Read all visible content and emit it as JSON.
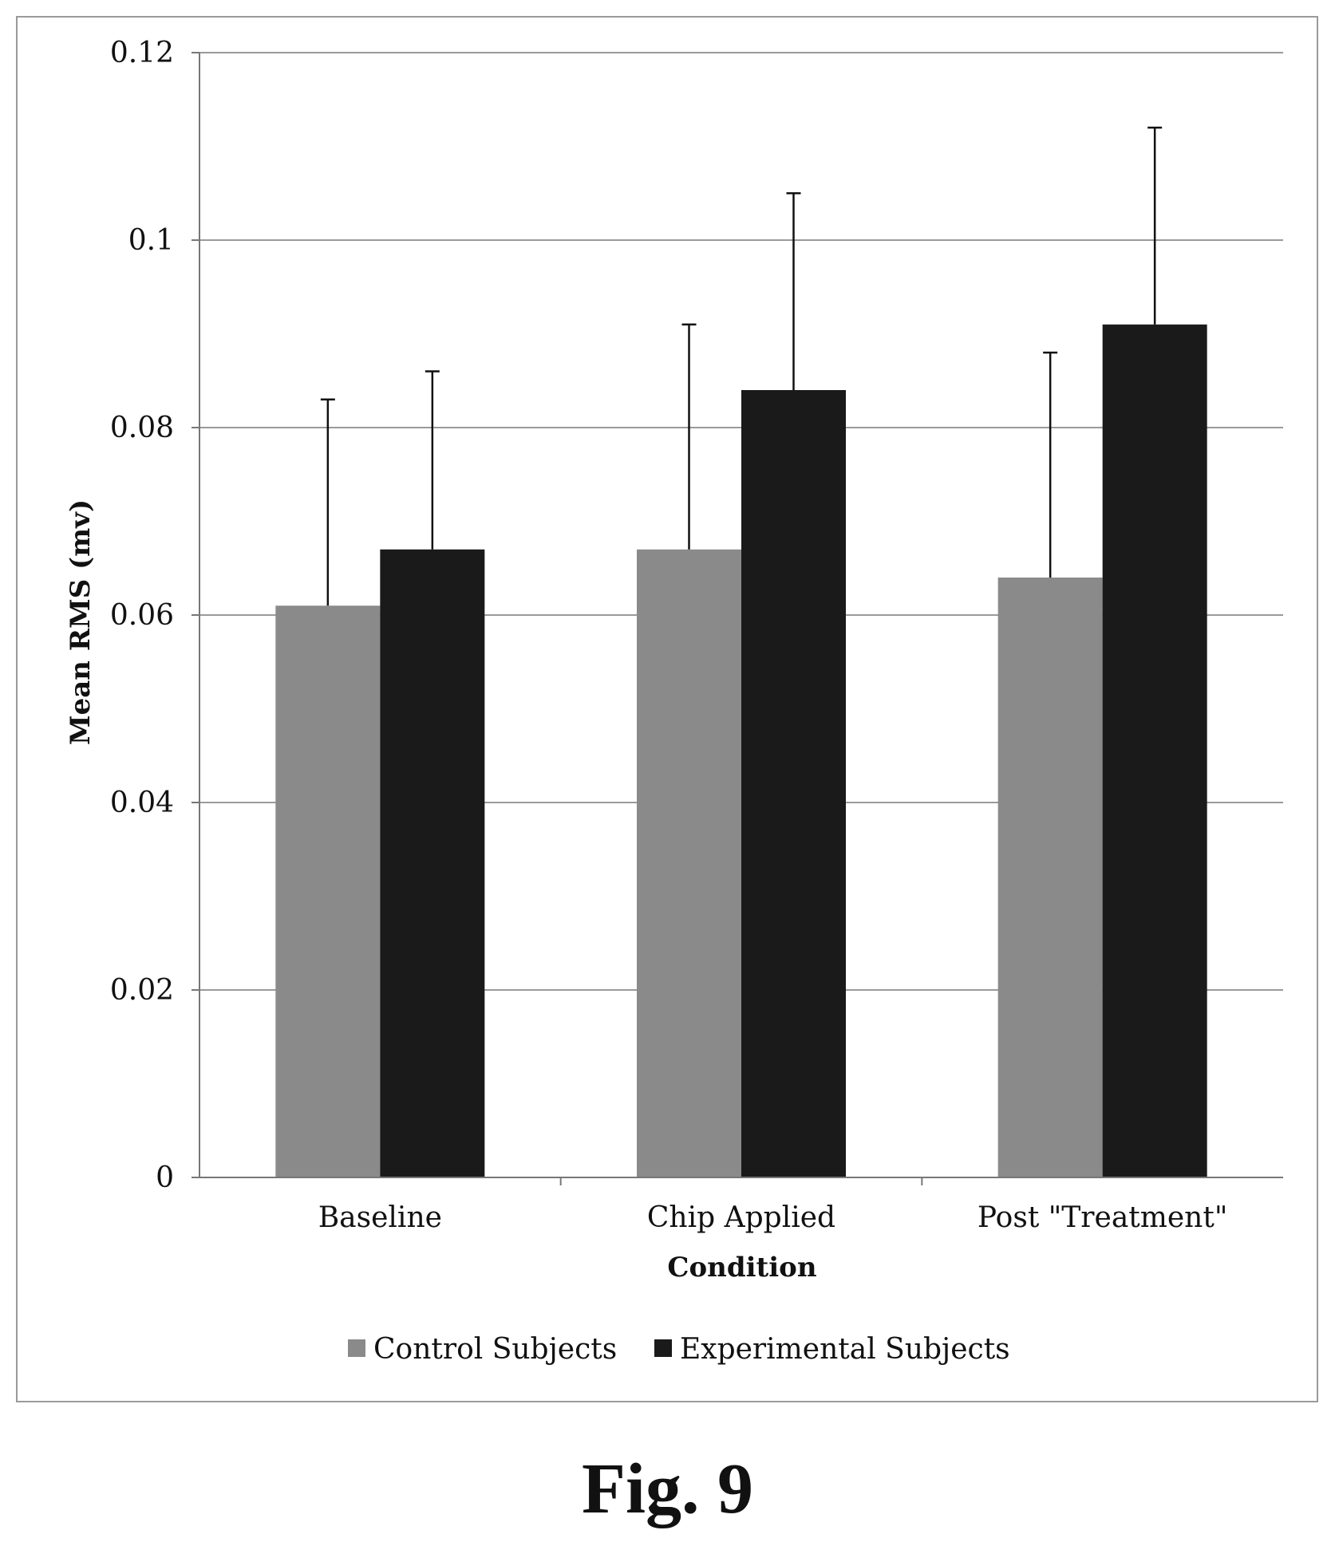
{
  "figure_caption": "Fig. 9",
  "chart_data": {
    "type": "bar",
    "categories": [
      "Baseline",
      "Chip Applied",
      "Post \"Treatment\""
    ],
    "series": [
      {
        "name": "Control Subjects",
        "values": [
          0.061,
          0.067,
          0.064
        ],
        "error_upper": [
          0.083,
          0.091,
          0.088
        ],
        "color": "#8a8a8a"
      },
      {
        "name": "Experimental Subjects",
        "values": [
          0.067,
          0.084,
          0.091
        ],
        "error_upper": [
          0.086,
          0.105,
          0.112
        ],
        "color": "#1a1a1a"
      }
    ],
    "xlabel": "Condition",
    "ylabel": "Mean RMS (mv)",
    "ylim": [
      0,
      0.12
    ],
    "yticks": [
      "0",
      "0.02",
      "0.04",
      "0.06",
      "0.08",
      "0.1",
      "0.12"
    ],
    "grid": true,
    "legend_position": "bottom"
  }
}
